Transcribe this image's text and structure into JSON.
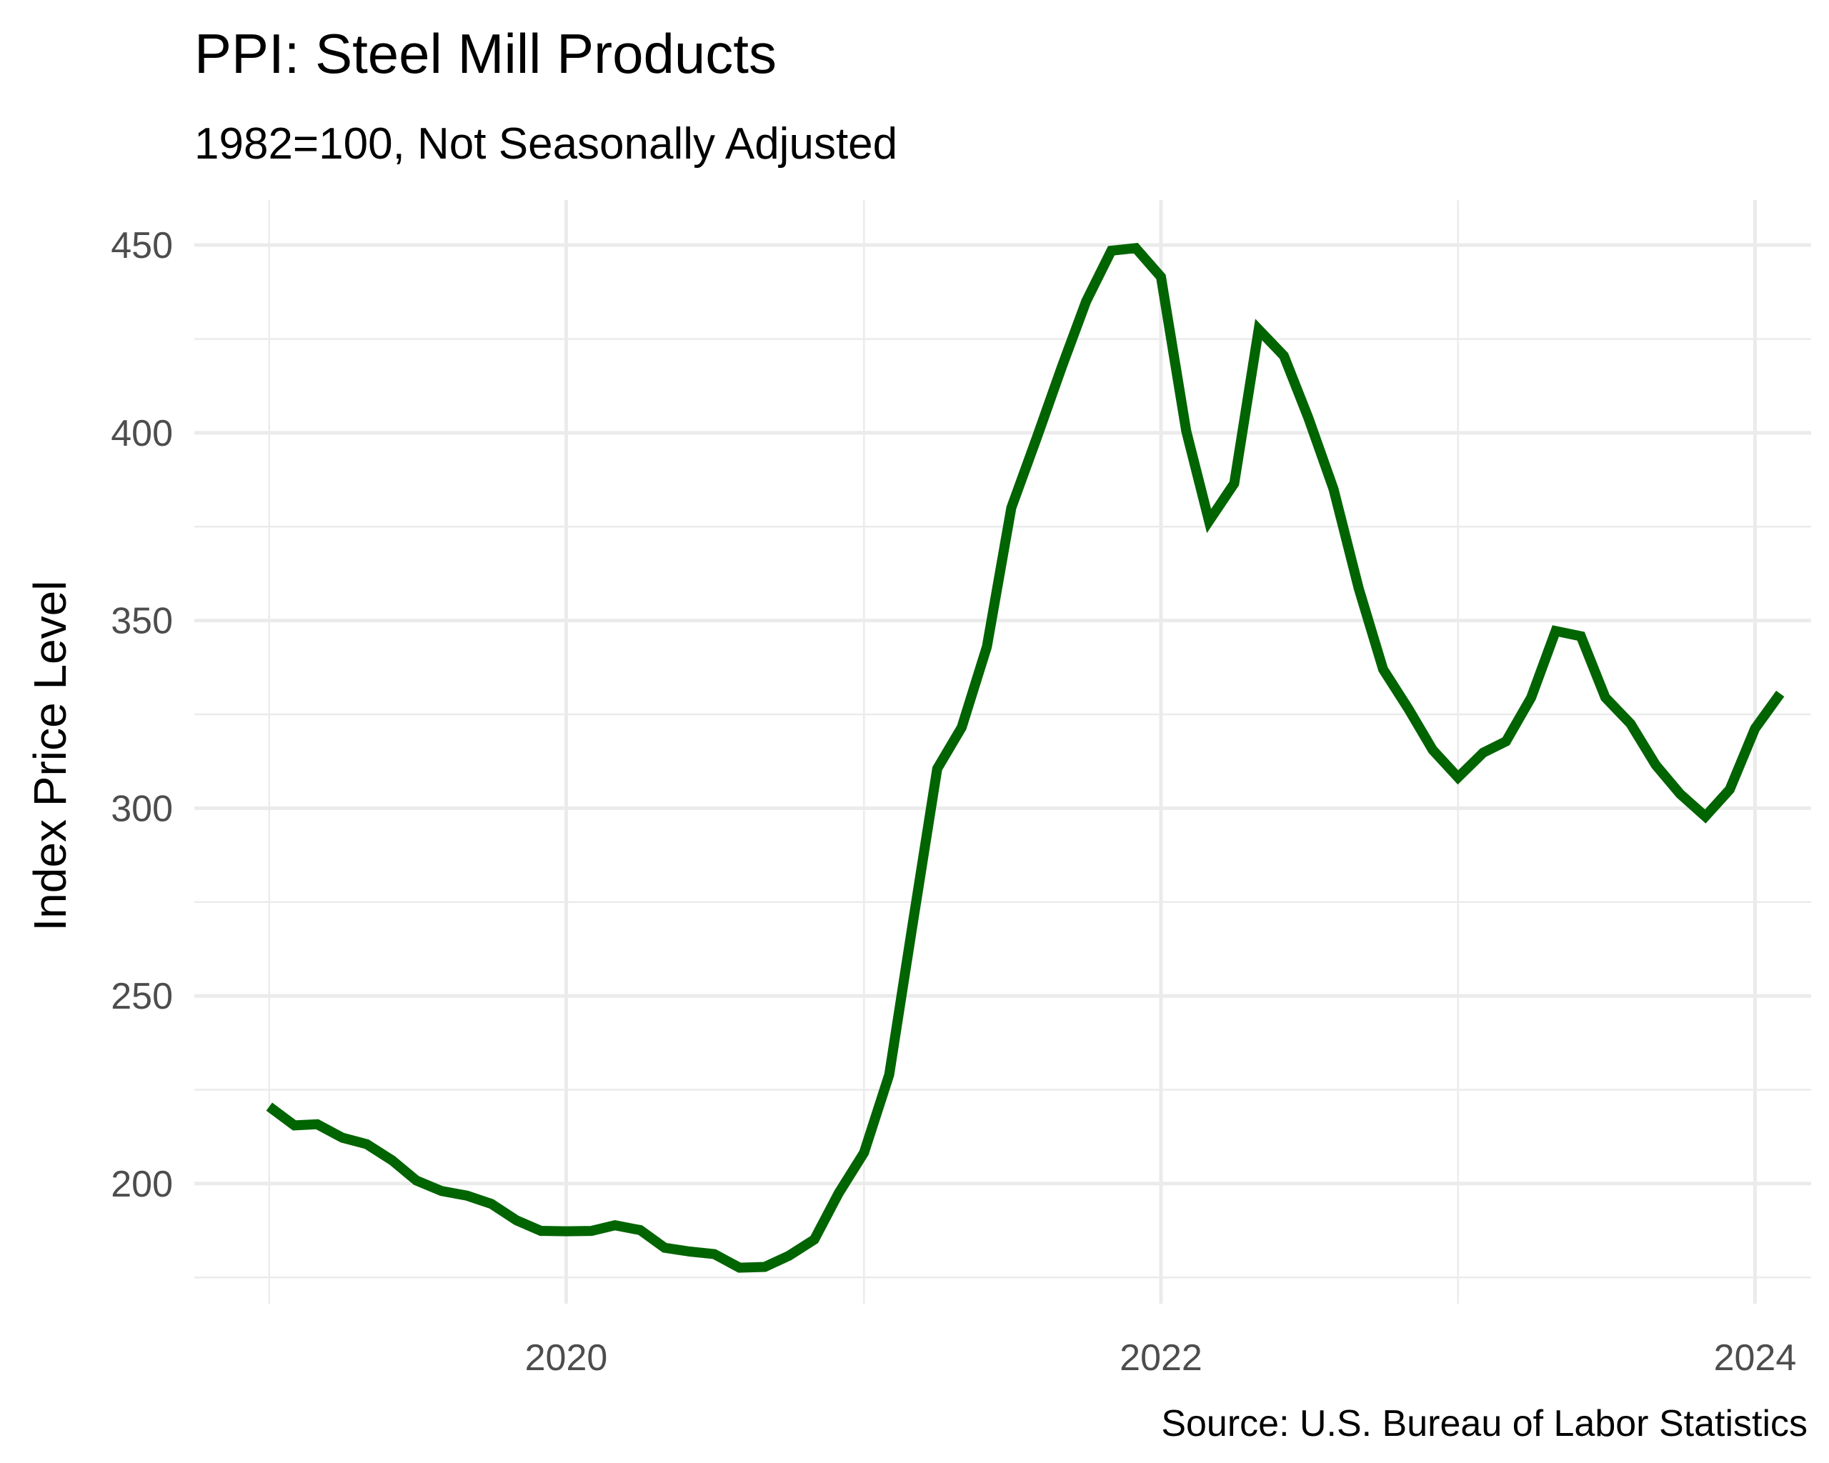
{
  "chart_data": {
    "type": "line",
    "title": "PPI: Steel Mill Products",
    "subtitle": "1982=100, Not Seasonally Adjusted",
    "xlabel": "",
    "ylabel": "Index Price Level",
    "caption": "Source: U.S. Bureau of Labor Statistics",
    "x_ticks": [
      "2020",
      "2022",
      "2024"
    ],
    "y_ticks": [
      200,
      250,
      300,
      350,
      400,
      450
    ],
    "ylim": [
      168,
      462
    ],
    "xlim": [
      "2018-10-01",
      "2024-03-10"
    ],
    "grid": true,
    "legend": "none",
    "line_color": "#006400",
    "series": [
      {
        "x": [
          "2019-01-01",
          "2019-02-01",
          "2019-03-01",
          "2019-04-01",
          "2019-05-01",
          "2019-06-01",
          "2019-07-01",
          "2019-08-01",
          "2019-09-01",
          "2019-10-01",
          "2019-11-01",
          "2019-12-01",
          "2020-01-01",
          "2020-02-01",
          "2020-03-01",
          "2020-04-01",
          "2020-05-01",
          "2020-06-01",
          "2020-07-01",
          "2020-08-01",
          "2020-09-01",
          "2020-10-01",
          "2020-11-01",
          "2020-12-01",
          "2021-01-01",
          "2021-02-01",
          "2021-03-01",
          "2021-04-01",
          "2021-05-01",
          "2021-06-01",
          "2021-07-01",
          "2021-08-01",
          "2021-09-01",
          "2021-10-01",
          "2021-11-01",
          "2021-12-01",
          "2022-01-01",
          "2022-02-01",
          "2022-03-01",
          "2022-04-01",
          "2022-05-01",
          "2022-06-01",
          "2022-07-01",
          "2022-08-01",
          "2022-09-01",
          "2022-10-01",
          "2022-11-01",
          "2022-12-01",
          "2023-01-01",
          "2023-02-01",
          "2023-03-01",
          "2023-04-01",
          "2023-05-01",
          "2023-06-01",
          "2023-07-01",
          "2023-08-01",
          "2023-09-01",
          "2023-10-01",
          "2023-11-01",
          "2023-12-01",
          "2024-01-01",
          "2024-02-01"
        ],
        "values": [
          220.5,
          215.5,
          215.8,
          212.2,
          210.5,
          206.2,
          200.8,
          198.0,
          196.8,
          194.6,
          190.2,
          187.4,
          187.3,
          187.4,
          188.9,
          187.6,
          182.9,
          181.9,
          181.2,
          177.6,
          177.8,
          180.8,
          185.1,
          197.5,
          208.2,
          229.0,
          268.0,
          310.5,
          321.5,
          343.0,
          380.0,
          398.5,
          417.5,
          435.0,
          448.5,
          449.2,
          441.5,
          400.5,
          376.5,
          386.5,
          427.5,
          420.5,
          404.0,
          385.0,
          358.5,
          337.0,
          326.5,
          315.5,
          308.2,
          314.8,
          317.8,
          329.5,
          347.2,
          345.8,
          329.5,
          322.5,
          311.5,
          303.8,
          297.8,
          305.0,
          321.2,
          330.5
        ]
      }
    ]
  }
}
